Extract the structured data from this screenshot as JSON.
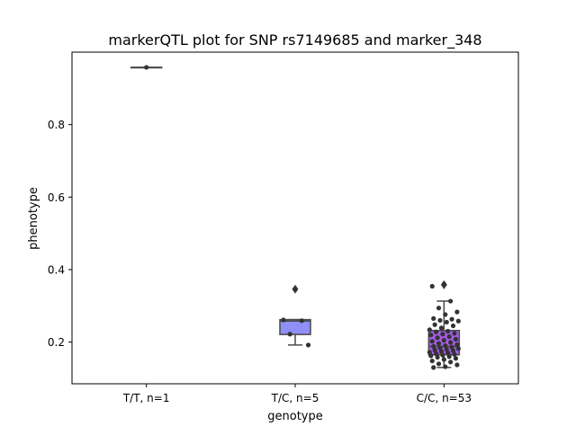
{
  "chart_data": {
    "type": "box",
    "title": "markerQTL plot for SNP rs7149685 and marker_348",
    "xlabel": "genotype",
    "ylabel": "phenotype",
    "ylim": [
      0.085,
      1.0
    ],
    "yticks": [
      0.2,
      0.4,
      0.6,
      0.8
    ],
    "ytick_labels": [
      "0.2",
      "0.4",
      "0.6",
      "0.8"
    ],
    "grid": false,
    "categories": [
      "T/T, n=1",
      "T/C, n=5",
      "C/C, n=53"
    ],
    "boxes": [
      {
        "category": "T/T, n=1",
        "color": "#6f6fe8",
        "q1": 0.958,
        "median": 0.958,
        "q3": 0.958,
        "whisker_low": 0.958,
        "whisker_high": 0.958,
        "outliers": []
      },
      {
        "category": "T/C, n=5",
        "color": "#8f8ff5",
        "q1": 0.221,
        "median": 0.258,
        "q3": 0.262,
        "whisker_low": 0.192,
        "whisker_high": 0.262,
        "outliers": [
          0.346
        ]
      },
      {
        "category": "C/C, n=53",
        "color": "#a65be8",
        "q1": 0.165,
        "median": 0.188,
        "q3": 0.232,
        "whisker_low": 0.13,
        "whisker_high": 0.313,
        "outliers": [
          0.358
        ]
      }
    ],
    "points": [
      {
        "category": "T/T, n=1",
        "values": [
          0.958
        ]
      },
      {
        "category": "T/C, n=5",
        "values": [
          0.347,
          0.261,
          0.259,
          0.222,
          0.192
        ]
      },
      {
        "category": "C/C, n=53",
        "values": [
          0.36,
          0.354,
          0.313,
          0.294,
          0.283,
          0.276,
          0.265,
          0.263,
          0.26,
          0.258,
          0.255,
          0.248,
          0.245,
          0.239,
          0.234,
          0.23,
          0.228,
          0.224,
          0.222,
          0.22,
          0.215,
          0.212,
          0.208,
          0.205,
          0.202,
          0.199,
          0.196,
          0.193,
          0.19,
          0.188,
          0.186,
          0.184,
          0.182,
          0.18,
          0.178,
          0.176,
          0.174,
          0.172,
          0.17,
          0.168,
          0.166,
          0.164,
          0.162,
          0.16,
          0.158,
          0.155,
          0.152,
          0.148,
          0.145,
          0.14,
          0.137,
          0.132,
          0.13
        ]
      }
    ]
  }
}
